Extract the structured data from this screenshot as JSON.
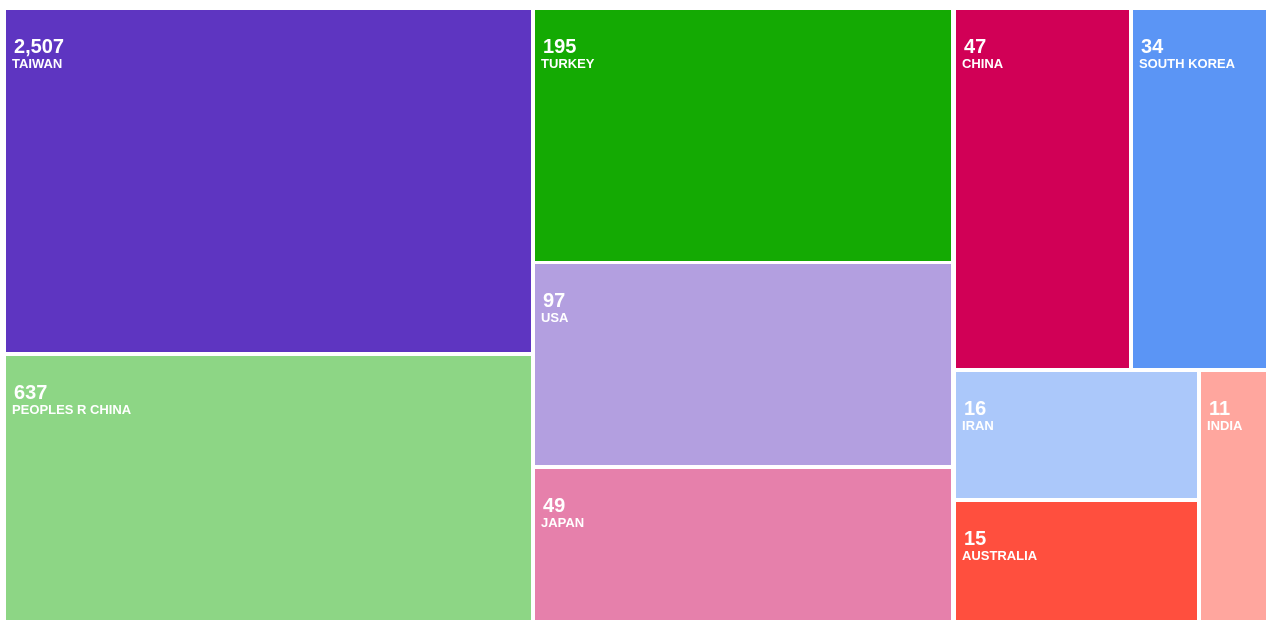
{
  "chart_data": {
    "type": "treemap",
    "categories": [
      "TAIWAN",
      "PEOPLES R CHINA",
      "TURKEY",
      "USA",
      "JAPAN",
      "CHINA",
      "SOUTH KOREA",
      "IRAN",
      "INDIA",
      "AUSTRALIA"
    ],
    "values": [
      2507,
      637,
      195,
      97,
      49,
      47,
      34,
      16,
      11,
      15
    ],
    "value_labels": [
      "2,507",
      "637",
      "195",
      "97",
      "49",
      "47",
      "34",
      "16",
      "11",
      "15"
    ],
    "colors": [
      "#5e35c1",
      "#8dd685",
      "#14aa03",
      "#b39fe0",
      "#e680ab",
      "#d10056",
      "#5b95f5",
      "#abc8fa",
      "#ffa69e",
      "#ff4f3e"
    ]
  }
}
